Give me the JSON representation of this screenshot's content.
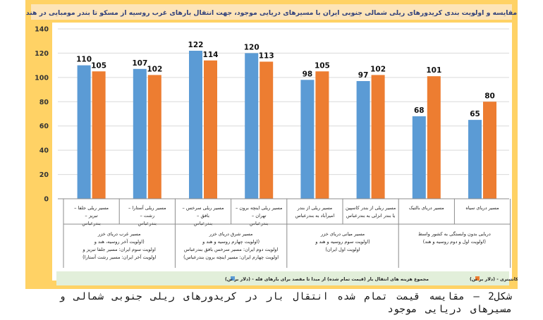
{
  "caption": "شکل2 – مقایسه قیمت تمام شده انتقال بار در کریدورهای ریلی جنوبی شمالی و مسیرهای دریایی موجود",
  "colors": {
    "frame": "#ffd265",
    "title_band": "#fde4b8",
    "title_text": "#2f3f7a",
    "plot_bg": "#ffffff",
    "grid": "#d9d9d9",
    "series_blue": "#5b9bd5",
    "series_orange": "#ed7d31",
    "legend_bg": "#e2efda"
  },
  "chart_data": {
    "type": "bar",
    "title": "مقایسه و اولویت بندی کریدورهای ریلی شمالی جنوبی ایران با مسیرهای دریایی موجود، جهت انتقال بارهای غرب روسیه از مسکو تا بندر مومبایی در هند",
    "ylim": [
      0,
      140
    ],
    "yticks": [
      0,
      20,
      40,
      60,
      80,
      100,
      120,
      140
    ],
    "grid": true,
    "legend_position": "bottom",
    "categories": [
      "مسیر ریلی جلفا – تبریز – بندرعباس",
      "مسیر ریلی آستارا – رشت – بندرعباس",
      "مسیر ریلی سرخس – بافق – بندرعباس",
      "مسیر ریلی اینچه برون – تهران – بندرعباس",
      "مسیر ریلی از بندر امیرآباد به بندرعباس",
      "مسیر ریلی از بندر کاسپین یا بندر انزلی به بندرعباس",
      "مسیر دریای بالتیک",
      "مسیر دریای سیاه"
    ],
    "groups": [
      {
        "lines": [
          "مسیر غرب دریای خزر",
          "(اولویت آخر روسیه، هند و",
          "اولویت سوم ایران: مسیر جلفا تبریز و",
          "اولویت آخر ایران: مسیر رشت آستارا)"
        ]
      },
      {
        "lines": [
          "مسیر شرق دریای خزر",
          "(اولویت چهارم روسیه و هند و",
          "اولویت دوم ایران: مسیر سرخس بافق بندرعباس",
          "اولویت چهارم ایران: مسیر اینچه برون بندرعباس)"
        ]
      },
      {
        "lines": [
          "مسیر میانی دریای خزر",
          "(اولویت سوم روسیه و هند و",
          "اولویت اول ایران)"
        ]
      },
      {
        "lines": [
          "دریایی بدون وابستگی به کشور واسط",
          "(اولویت اول و دوم روسیه و هند)"
        ]
      }
    ],
    "series": [
      {
        "name": "مجموع هزینه های انتقال بار (قیمت تمام شده) از مبدا تا مقصد برای بارهای فله - (دلار بر تن)",
        "values": [
          110,
          107,
          122,
          120,
          98,
          97,
          68,
          65
        ]
      },
      {
        "name": "مجموع هزینه های انتقال بار (قیمت تمام شده) از مبدا تا مقصد برای بارهای کانتینری - (دلار بر تن)",
        "values": [
          105,
          102,
          114,
          113,
          105,
          102,
          101,
          80
        ]
      }
    ]
  }
}
